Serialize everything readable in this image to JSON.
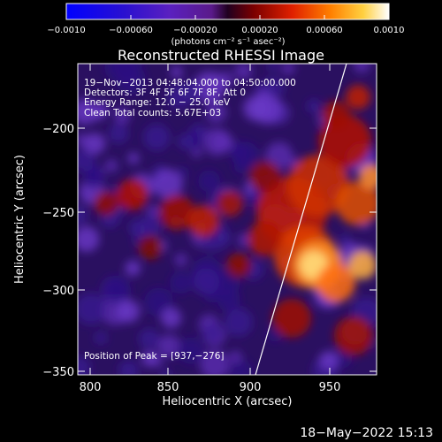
{
  "colorbar": {
    "ticks": [
      "−0.0010",
      "−0.00060",
      "−0.00020",
      "0.00020",
      "0.00060",
      "0.0010"
    ],
    "units": "(photons cm⁻² s⁻¹ asec⁻²)"
  },
  "plot": {
    "title": "Reconstructed RHESSI Image",
    "xlabel": "Heliocentric X (arcsec)",
    "ylabel": "Heliocentric Y (arcsec)",
    "xticks": [
      "800",
      "850",
      "900",
      "950"
    ],
    "yticks": [
      "−200",
      "−250",
      "−300",
      "−350"
    ],
    "info": {
      "line1": "19−Nov−2013 04:48:04.000 to 04:50:00.000",
      "line2": "Detectors: 3F 4F 5F 6F 7F 8F, Att 0",
      "line3": "Energy Range: 12.0 − 25.0 keV",
      "line4": "Clean    Total counts: 5.67E+03"
    },
    "peak": "Position of Peak = [937,−276]"
  },
  "footer": {
    "date": "18−May−2022 15:13"
  }
}
